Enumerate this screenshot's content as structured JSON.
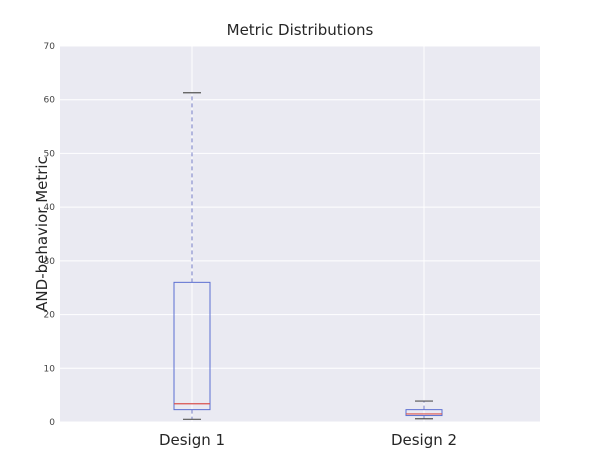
{
  "chart_data": {
    "type": "box",
    "title": "Metric Distributions",
    "xlabel": "",
    "ylabel": "AND-behavior Metric",
    "ylim": [
      0,
      70
    ],
    "yticks": [
      0,
      10,
      20,
      30,
      40,
      50,
      60,
      70
    ],
    "grid": true,
    "categories": [
      "Design 1",
      "Design 2"
    ],
    "boxes": [
      {
        "category": "Design 1",
        "whisker_low": 0.5,
        "q1": 2.3,
        "median": 3.4,
        "q3": 26.0,
        "whisker_high": 61.3
      },
      {
        "category": "Design 2",
        "whisker_low": 0.6,
        "q1": 1.2,
        "median": 1.5,
        "q3": 2.3,
        "whisker_high": 3.9
      }
    ],
    "colors": {
      "box": "#5b6fd1",
      "whisker": "#7b83c9",
      "median": "#d9534f",
      "background": "#eaeaf2",
      "grid": "#ffffff"
    }
  }
}
